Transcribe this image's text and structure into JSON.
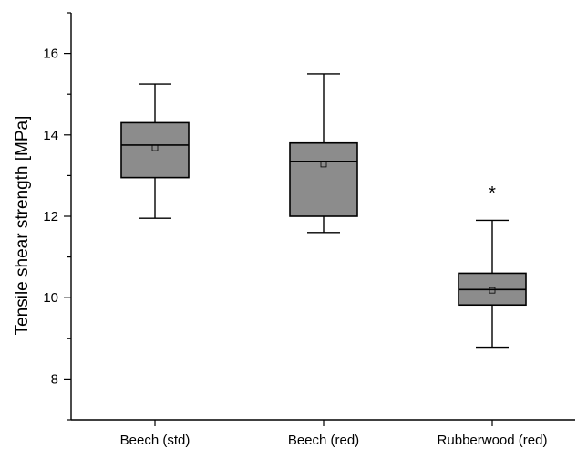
{
  "chart_data": {
    "type": "box",
    "title": "",
    "xlabel": "",
    "ylabel": "Tensile shear strength [MPa]",
    "ylim": [
      7.0,
      17.0
    ],
    "yticks": [
      8,
      10,
      12,
      14,
      16
    ],
    "grid": false,
    "box_color": "#8c8c8c",
    "categories": [
      "Beech (std)",
      "Beech (red)",
      "Rubberwood (red)"
    ],
    "boxes": [
      {
        "category": "Beech (std)",
        "whisker_low": 11.95,
        "q1": 12.95,
        "median": 13.75,
        "q3": 14.3,
        "whisker_high": 15.25,
        "mean": 13.68,
        "outliers": []
      },
      {
        "category": "Beech (red)",
        "whisker_low": 11.6,
        "q1": 12.0,
        "median": 13.35,
        "q3": 13.8,
        "whisker_high": 15.5,
        "mean": 13.28,
        "outliers": []
      },
      {
        "category": "Rubberwood (red)",
        "whisker_low": 8.78,
        "q1": 9.82,
        "median": 10.2,
        "q3": 10.6,
        "whisker_high": 11.9,
        "mean": 10.18,
        "outliers": [
          12.7
        ]
      }
    ]
  }
}
